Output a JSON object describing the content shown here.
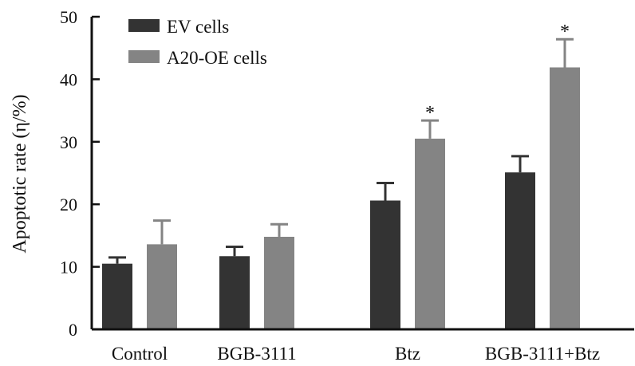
{
  "chart_data": {
    "type": "bar",
    "title": "",
    "xlabel": "",
    "ylabel": "Apoptotic rate (η/%)",
    "ylim": [
      0,
      50
    ],
    "yticks": [
      0,
      10,
      20,
      30,
      40,
      50
    ],
    "grid": false,
    "legend_position": "top-left",
    "categories": [
      "Control",
      "BGB-3111",
      "Btz",
      "BGB-3111+Btz"
    ],
    "series": [
      {
        "name": "EV cells",
        "color": "#333333",
        "values": [
          10.5,
          11.7,
          20.6,
          25.1
        ],
        "errors": [
          1.0,
          1.5,
          2.8,
          2.6
        ],
        "annotations": [
          "",
          "",
          "",
          ""
        ]
      },
      {
        "name": "A20-OE cells",
        "color": "#848484",
        "values": [
          13.6,
          14.8,
          30.5,
          41.9
        ],
        "errors": [
          3.8,
          2.0,
          2.9,
          4.5
        ],
        "annotations": [
          "",
          "",
          "*",
          "*"
        ]
      }
    ]
  }
}
